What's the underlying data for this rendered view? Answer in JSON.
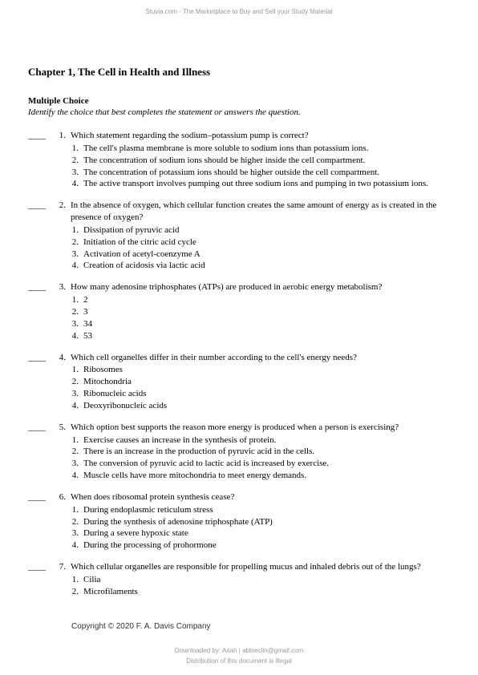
{
  "header": {
    "watermark": "Stuvia.com - The Marketplace to Buy and Sell your Study Material"
  },
  "document": {
    "chapter_title": "Chapter 1, The Cell in Health and Illness",
    "section_header": "Multiple Choice",
    "section_instruction": "Identify the choice that best completes the statement or answers the question.",
    "blank": "____",
    "questions": [
      {
        "num": "1.",
        "stem": "Which statement regarding the sodium–potassium pump is correct?",
        "choices": [
          {
            "n": "1.",
            "t": "The cell's plasma membrane is more soluble to sodium ions than potassium ions."
          },
          {
            "n": "2.",
            "t": "The concentration of sodium ions should be higher inside the cell compartment."
          },
          {
            "n": "3.",
            "t": "The concentration of potassium ions should be higher outside the cell compartment."
          },
          {
            "n": "4.",
            "t": "The active transport involves pumping out three sodium ions and pumping in two potassium ions."
          }
        ]
      },
      {
        "num": "2.",
        "stem": "In the absence of oxygen, which cellular function creates the same amount of energy as is created in the presence of oxygen?",
        "choices": [
          {
            "n": "1.",
            "t": "Dissipation of pyruvic acid"
          },
          {
            "n": "2.",
            "t": "Initiation of the citric acid cycle"
          },
          {
            "n": "3.",
            "t": "Activation of acetyl-coenzyme A"
          },
          {
            "n": "4.",
            "t": "Creation of acidosis via lactic acid"
          }
        ]
      },
      {
        "num": "3.",
        "stem": "How many adenosine triphosphates (ATPs) are produced in aerobic energy metabolism?",
        "choices": [
          {
            "n": "1.",
            "t": "2"
          },
          {
            "n": "2.",
            "t": "3"
          },
          {
            "n": "3.",
            "t": "34"
          },
          {
            "n": "4.",
            "t": "53"
          }
        ]
      },
      {
        "num": "4.",
        "stem": "Which cell organelles differ in their number according to the cell's energy needs?",
        "choices": [
          {
            "n": "1.",
            "t": "Ribosomes"
          },
          {
            "n": "2.",
            "t": "Mitochondria"
          },
          {
            "n": "3.",
            "t": "Ribonucleic acids"
          },
          {
            "n": "4.",
            "t": "Deoxyribonucleic acids"
          }
        ]
      },
      {
        "num": "5.",
        "stem": "Which option best supports the reason more energy is produced when a person is exercising?",
        "choices": [
          {
            "n": "1.",
            "t": "Exercise causes an increase in the synthesis of protein."
          },
          {
            "n": "2.",
            "t": "There is an increase in the production of pyruvic acid in the cells."
          },
          {
            "n": "3.",
            "t": "The conversion of pyruvic acid to lactic acid is increased by exercise."
          },
          {
            "n": "4.",
            "t": "Muscle cells have more mitochondria to meet energy demands."
          }
        ]
      },
      {
        "num": "6.",
        "stem": "When does ribosomal protein synthesis cease?",
        "choices": [
          {
            "n": "1.",
            "t": "During endoplasmic reticulum stress"
          },
          {
            "n": "2.",
            "t": "During the synthesis of adenosine triphosphate (ATP)"
          },
          {
            "n": "3.",
            "t": "During a severe hypoxic state"
          },
          {
            "n": "4.",
            "t": "During the processing of prohormone"
          }
        ]
      },
      {
        "num": "7.",
        "stem": "Which cellular organelles are responsible for propelling mucus and inhaled debris out of the lungs?",
        "choices": [
          {
            "n": "1.",
            "t": "Cilia"
          },
          {
            "n": "2.",
            "t": "Microfilaments"
          }
        ]
      }
    ],
    "copyright": "Copyright © 2020 F. A. Davis Company"
  },
  "footer": {
    "line1": "Downloaded by: Ariah | abbieclin@gmail.com",
    "line2": "Distribution of this document is illegal"
  }
}
